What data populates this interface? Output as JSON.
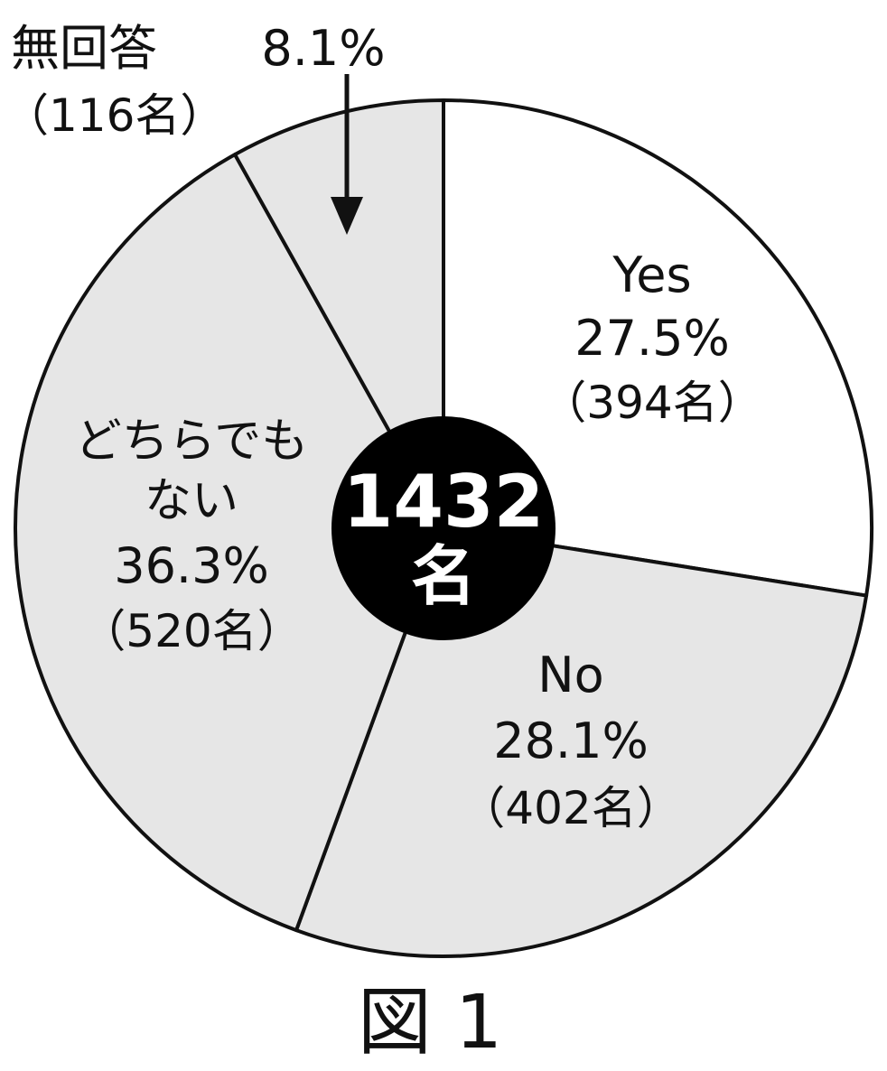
{
  "chart_data": {
    "type": "pie",
    "title": "",
    "caption": "図 1",
    "center_label": {
      "line1": "1432",
      "line2": "名"
    },
    "slices": [
      {
        "label": "Yes",
        "percent_text": "27.5%",
        "count_text": "（394名）",
        "value": 394,
        "percent": 27.5,
        "fill": "#ffffff"
      },
      {
        "label": "No",
        "percent_text": "28.1%",
        "count_text": "（402名）",
        "value": 402,
        "percent": 28.1,
        "fill": "#e6e6e6"
      },
      {
        "label": "どちらでも\nない",
        "percent_text": "36.3%",
        "count_text": "（520名）",
        "value": 520,
        "percent": 36.3,
        "fill": "#e6e6e6"
      },
      {
        "label": "無回答",
        "percent_text": "8.1%",
        "count_text": "（116名）",
        "value": 116,
        "percent": 8.1,
        "fill": "#e6e6e6"
      }
    ],
    "start_angle": "12 o'clock",
    "direction": "clockwise"
  },
  "colors": {
    "outline": "#111111",
    "center_fill": "#000000",
    "center_text": "#ffffff",
    "text": "#111111"
  }
}
